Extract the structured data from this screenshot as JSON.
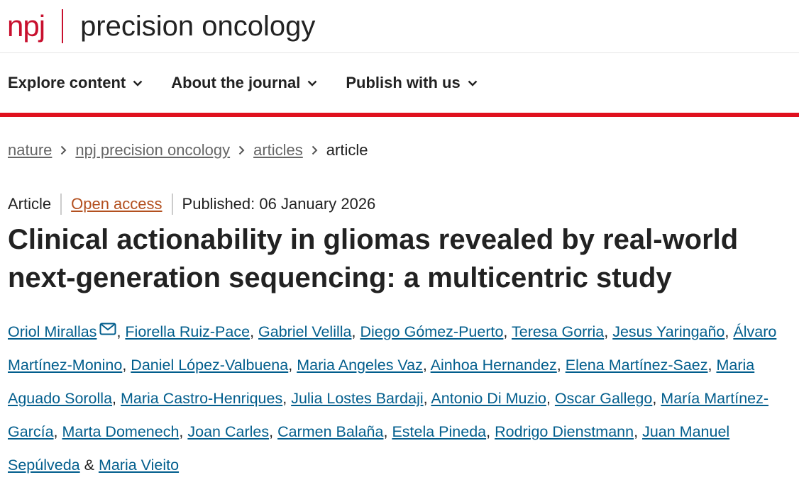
{
  "header": {
    "brand": "npj",
    "journal": "precision oncology"
  },
  "nav": [
    "Explore content",
    "About the journal",
    "Publish with us"
  ],
  "breadcrumbs": [
    "nature",
    "npj precision oncology",
    "articles",
    "article"
  ],
  "meta": {
    "type": "Article",
    "access": "Open access",
    "published": "Published: 06 January 2026"
  },
  "title": "Clinical actionability in gliomas revealed by real-world next-generation sequencing: a multicentric study",
  "authors": [
    "Oriol Mirallas",
    "Fiorella Ruiz-Pace",
    "Gabriel Velilla",
    "Diego Gómez-Puerto",
    "Teresa Gorria",
    "Jesus Yaringaño",
    "Álvaro Martínez-Monino",
    "Daniel López-Valbuena",
    "Maria Angeles Vaz",
    "Ainhoa Hernandez",
    "Elena Martínez-Saez",
    "Maria Aguado Sorolla",
    "Maria Castro-Henriques",
    "Julia Lostes Bardaji",
    "Antonio Di Muzio",
    "Oscar Gallego",
    "María Martínez-García",
    "Marta Domenech",
    "Joan Carles",
    "Carmen Balaña",
    "Estela Pineda",
    "Rodrigo Dienstmann",
    "Juan Manuel Sepúlveda",
    "Maria Vieito"
  ],
  "author_separator": ",",
  "final_separator": "&"
}
